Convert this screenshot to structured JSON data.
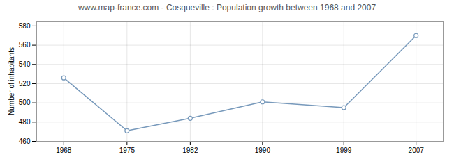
{
  "chart_data": {
    "type": "line",
    "title": "www.map-france.com - Cosqueville : Population growth between 1968 and 2007",
    "ylabel": "Number of inhabitants",
    "x": [
      1968,
      1975,
      1982,
      1990,
      1999,
      2007
    ],
    "values": [
      526,
      471,
      484,
      501,
      495,
      570
    ],
    "color": "#7799bb",
    "marker": "circle",
    "xlim": [
      1965,
      2010
    ],
    "xticks": [
      1968,
      1975,
      1982,
      1990,
      1999,
      2007
    ],
    "ylim": [
      460,
      585
    ],
    "yticks": [
      460,
      480,
      500,
      520,
      540,
      560,
      580
    ],
    "grid": true
  }
}
